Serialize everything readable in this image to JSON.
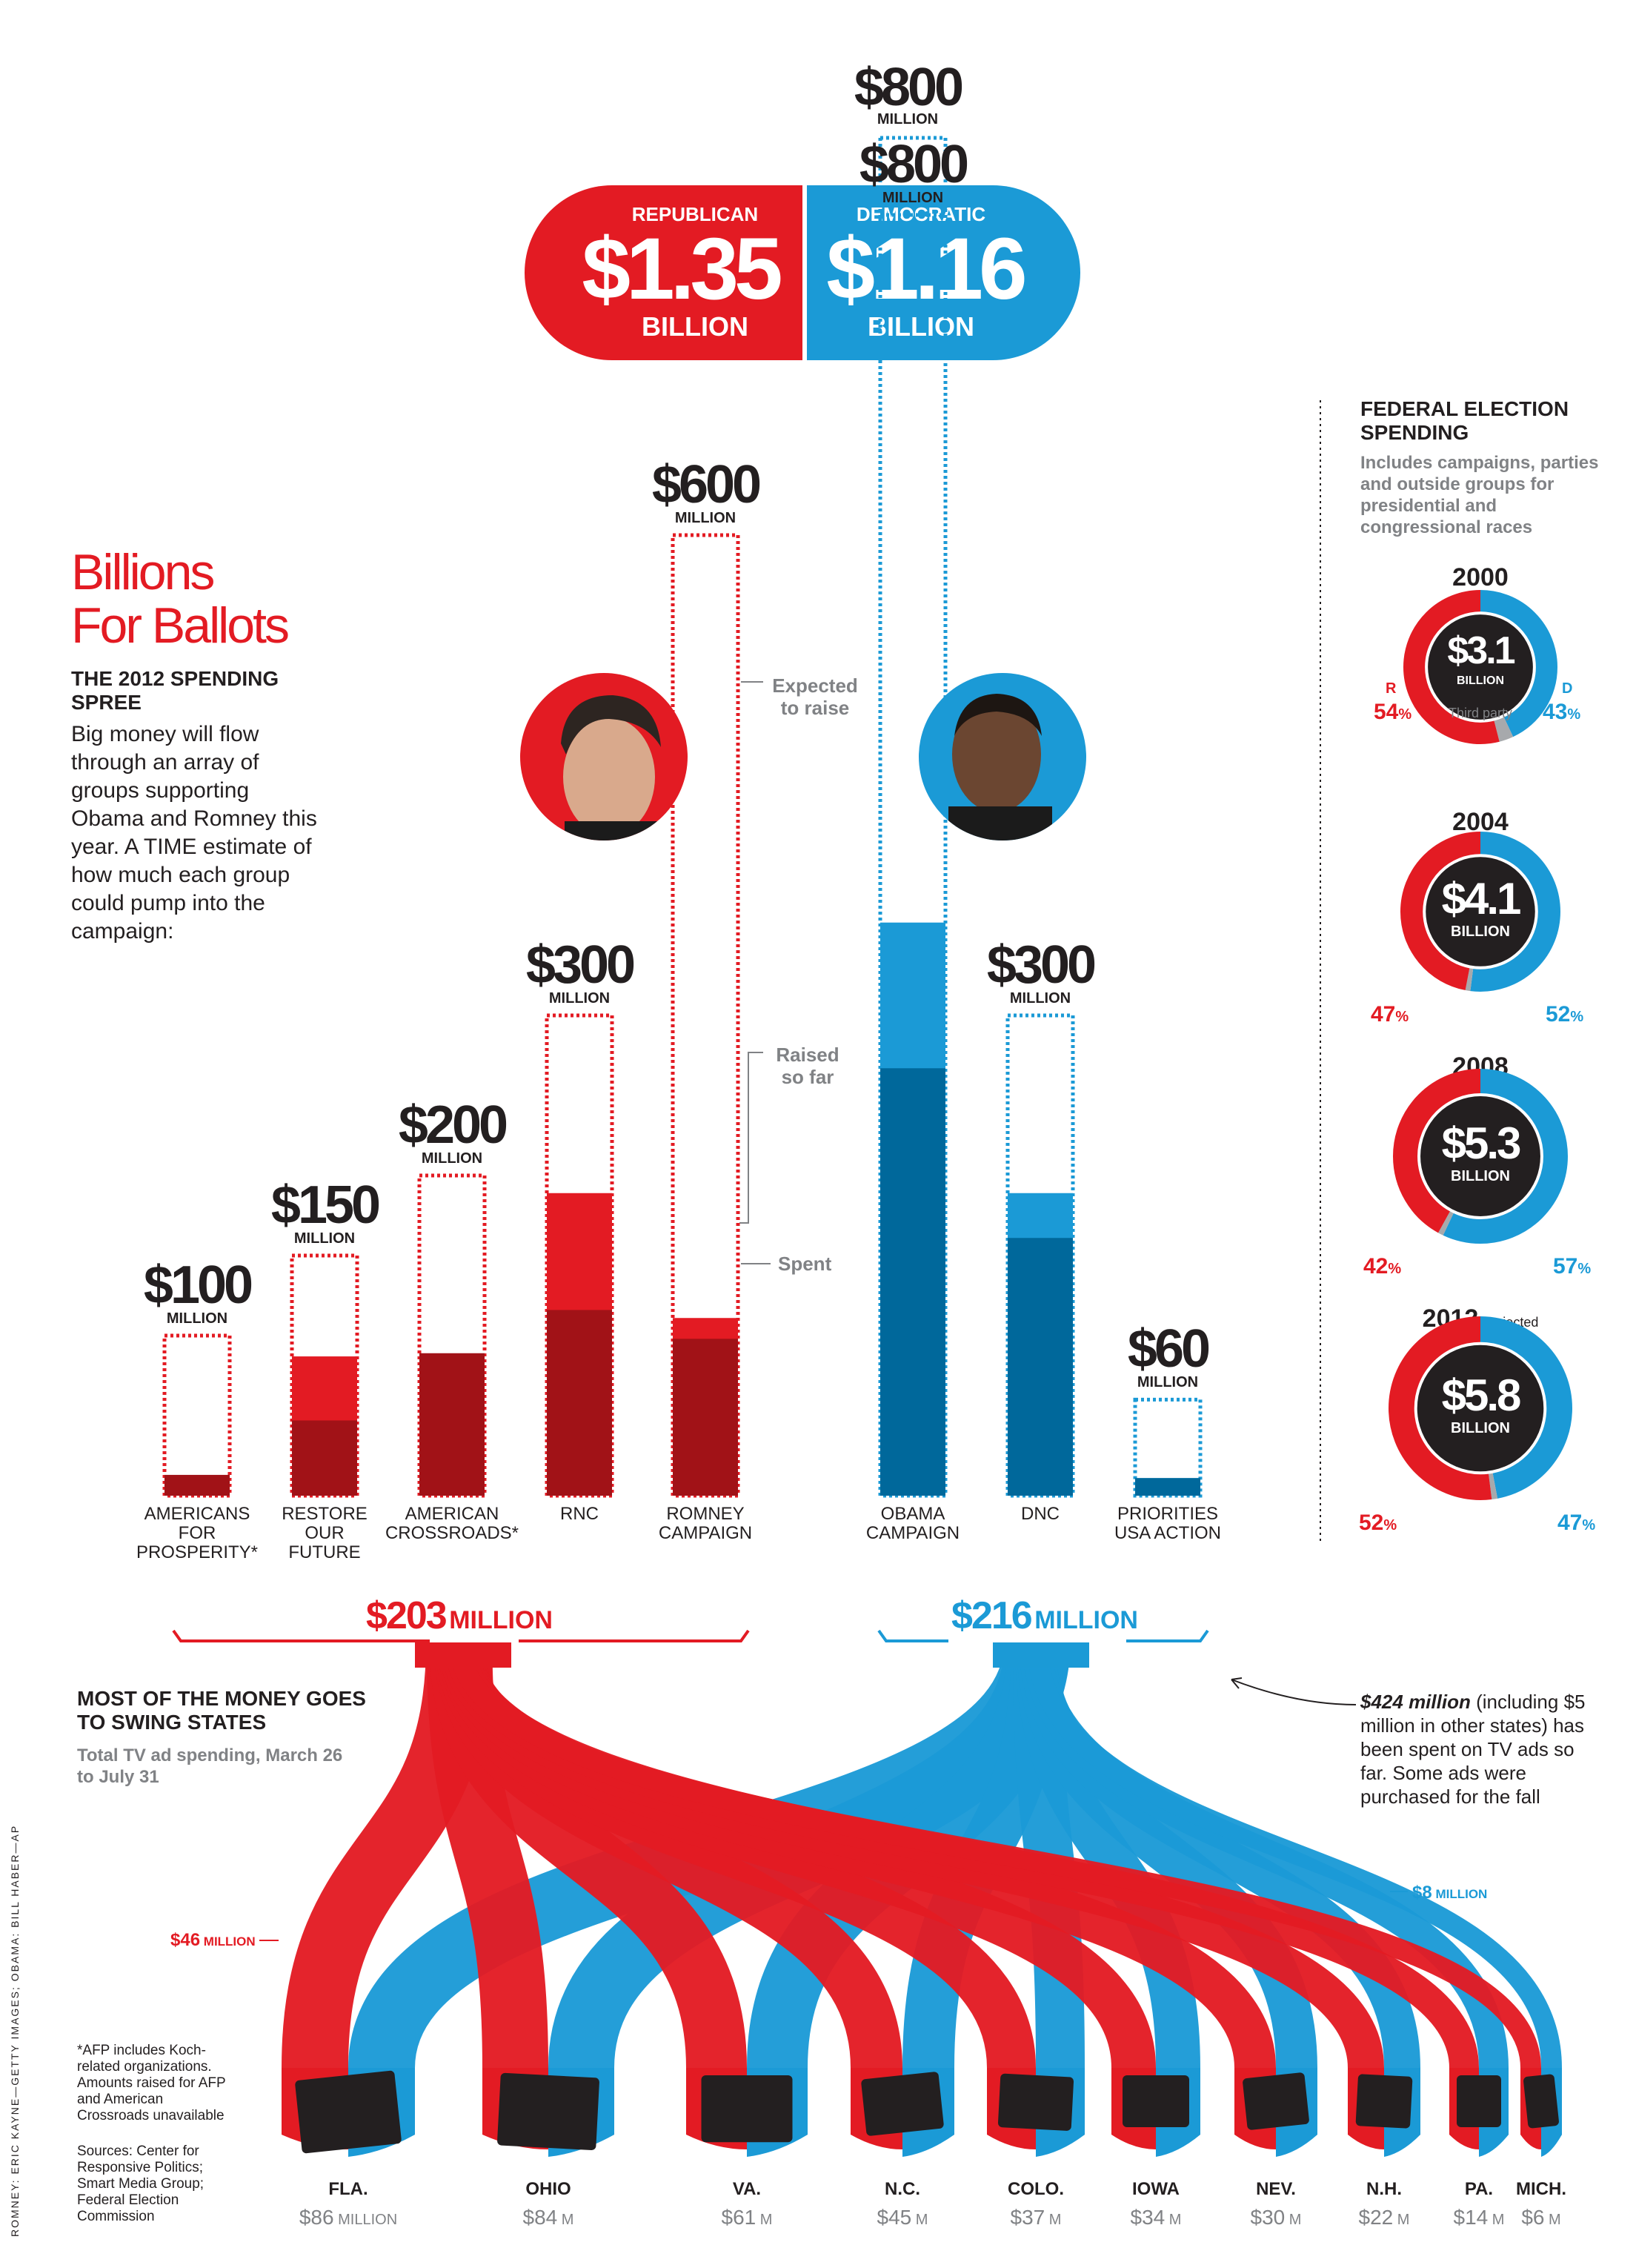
{
  "header": {
    "total_top_amount": "$800",
    "total_top_unit": "MILLION",
    "republican_label": "REPUBLICAN",
    "republican_amount": "$1.35",
    "republican_unit": "BILLION",
    "democratic_label": "DEMOCRATIC",
    "democratic_amount": "$1.16",
    "democratic_unit": "BILLION"
  },
  "title": {
    "line1": "Billions",
    "line2": "For Ballots"
  },
  "intro": {
    "subhead": "THE 2012 SPENDING SPREE",
    "body": "Big money will flow through an array of groups supporting Obama and Romney this year. A TIME estimate of how much each group could pump into the campaign:"
  },
  "legend": {
    "expected": "Expected to raise",
    "raised": "Raised so far",
    "spent": "Spent"
  },
  "colors": {
    "rep_light": "#e31b23",
    "rep_dark": "#a11217",
    "dem_light": "#1b9ad6",
    "dem_dark": "#00689b",
    "ink": "#231f20"
  },
  "chart_data": [
    {
      "type": "bar",
      "title": "THE 2012 SPENDING SPREE",
      "units": "millions of dollars",
      "categories": [
        "AMERICANS FOR PROSPERITY*",
        "RESTORE OUR FUTURE",
        "AMERICAN CROSSROADS*",
        "RNC",
        "ROMNEY CAMPAIGN",
        "OBAMA CAMPAIGN",
        "DNC",
        "PRIORITIES USA ACTION"
      ],
      "category_lines": [
        [
          "AMERICANS",
          "FOR",
          "PROSPERITY*"
        ],
        [
          "RESTORE",
          "OUR",
          "FUTURE"
        ],
        [
          "AMERICAN",
          "CROSSROADS*"
        ],
        [
          "RNC"
        ],
        [
          "ROMNEY",
          "CAMPAIGN"
        ],
        [
          "OBAMA",
          "CAMPAIGN"
        ],
        [
          "DNC"
        ],
        [
          "PRIORITIES",
          "USA ACTION"
        ]
      ],
      "party": [
        "R",
        "R",
        "R",
        "R",
        "R",
        "D",
        "D",
        "D"
      ],
      "expected_labels": [
        "$100",
        "$150",
        "$200",
        "$300",
        "$600",
        "$800",
        "$300",
        "$60"
      ],
      "series": [
        {
          "name": "Expected to raise",
          "values": [
            100,
            150,
            200,
            300,
            600,
            800,
            300,
            60
          ]
        },
        {
          "name": "Raised so far",
          "values": [
            null,
            87,
            null,
            189,
            111,
            358,
            189,
            11
          ]
        },
        {
          "name": "Spent",
          "values": [
            13,
            47,
            89,
            116,
            98,
            267,
            161,
            11
          ]
        }
      ],
      "ylim": [
        0,
        800
      ]
    },
    {
      "type": "table",
      "title": "MOST OF THE MONEY GOES TO SWING STATES",
      "subtitle": "Total TV ad spending, March 26 to July 31",
      "totals": {
        "republican": "$203",
        "democratic": "$216",
        "unit": "MILLION"
      },
      "states": [
        "FLA.",
        "OHIO",
        "VA.",
        "N.C.",
        "COLO.",
        "IOWA",
        "NEV.",
        "N.H.",
        "PA.",
        "MICH."
      ],
      "values": [
        86,
        84,
        61,
        45,
        37,
        34,
        30,
        22,
        14,
        6
      ],
      "value_labels": [
        "$86",
        "$84",
        "$61",
        "$45",
        "$37",
        "$34",
        "$30",
        "$22",
        "$14",
        "$6"
      ],
      "value_units": [
        "MILLION",
        "M",
        "M",
        "M",
        "M",
        "M",
        "M",
        "M",
        "M",
        "M"
      ],
      "annotations": {
        "fla_rep": "$46",
        "mich_dem": "$8",
        "unit": "MILLION"
      }
    },
    {
      "type": "pie",
      "title": "FEDERAL ELECTION SPENDING",
      "subtitle": "Includes campaigns, parties and outside groups for presidential and congressional races",
      "years": [
        {
          "year": "2000",
          "total": "$3.1",
          "unit": "BILLION",
          "r": 54,
          "d": 43,
          "third": 3,
          "tag": ""
        },
        {
          "year": "2004",
          "total": "$4.1",
          "unit": "BILLION",
          "r": 47,
          "d": 52,
          "third": 1,
          "tag": ""
        },
        {
          "year": "2008",
          "total": "$5.3",
          "unit": "BILLION",
          "r": 42,
          "d": 57,
          "third": 1,
          "tag": ""
        },
        {
          "year": "2012",
          "total": "$5.8",
          "unit": "BILLION",
          "r": 52,
          "d": 47,
          "third": 1,
          "tag": "Projected"
        }
      ],
      "labels": {
        "r": "R",
        "d": "D",
        "third": "Third party",
        "pct": "%"
      }
    }
  ],
  "swing": {
    "head": "MOST OF THE MONEY GOES TO SWING STATES",
    "sub": "Total TV ad spending, March 26 to July 31",
    "callout_bold": "$424 million",
    "callout_rest": " (including $5 million in other states) has been spent on TV ads so far. Some ads were purchased for the fall"
  },
  "footnote": "*AFP includes Koch-related organizations. Amounts raised for AFP and American Crossroads unavailable",
  "sources": "Sources: Center for Responsive Politics; Smart Media Group; Federal Election Commission",
  "credits": "ROMNEY: ERIC KAYNE—GETTY IMAGES; OBAMA: BILL HABER—AP"
}
